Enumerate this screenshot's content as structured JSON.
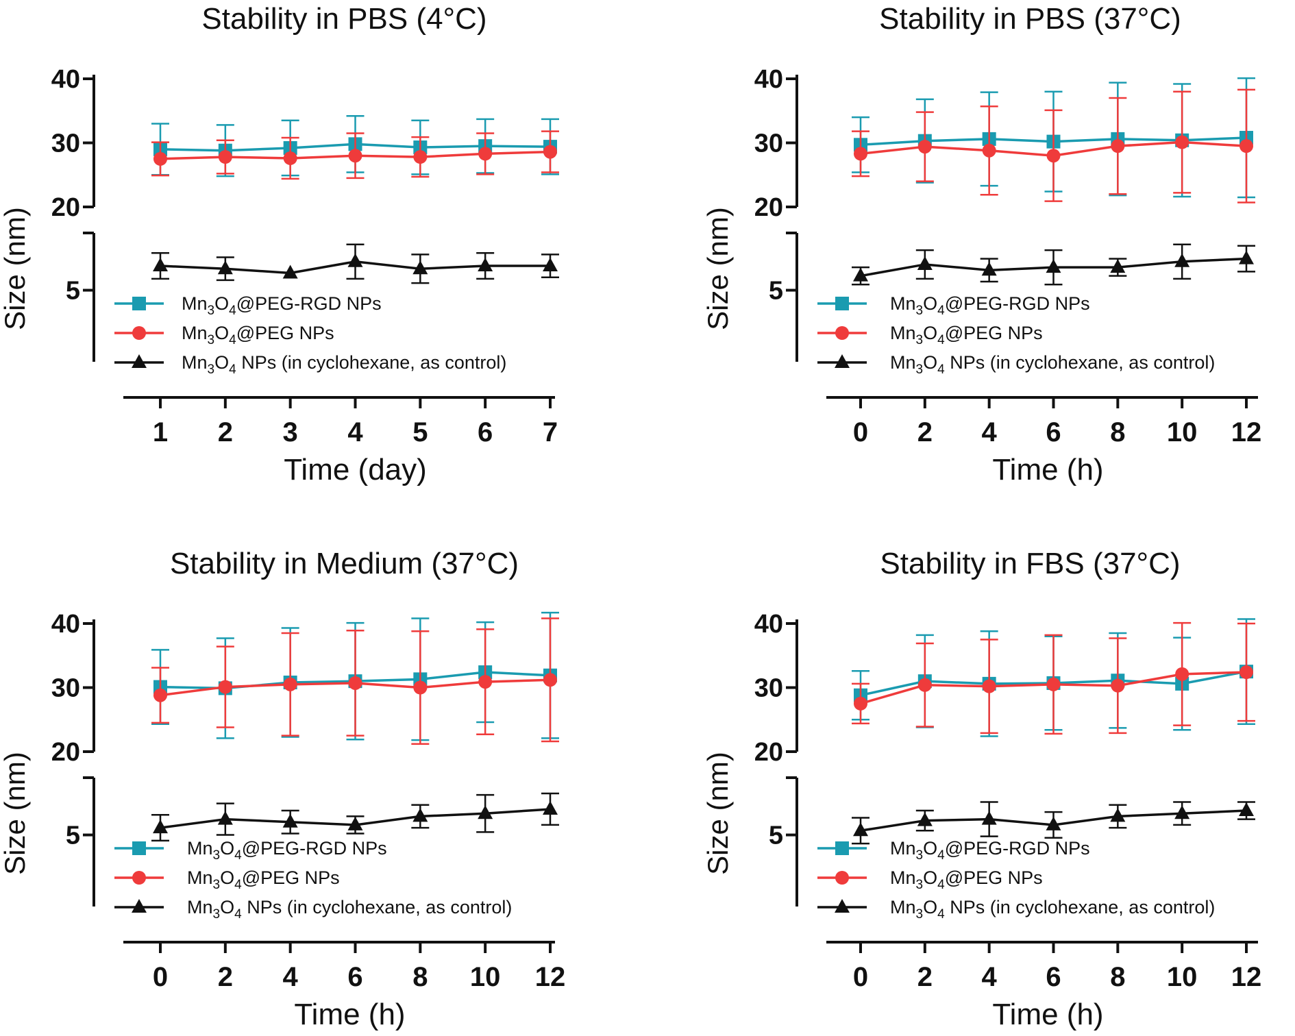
{
  "chart_data": [
    {
      "type": "line",
      "title": "Stability in PBS (4°C)",
      "xlabel": "Time (day)",
      "ylabel": "Size (nm)",
      "x": [
        1,
        2,
        3,
        4,
        5,
        6,
        7
      ],
      "xticks": [
        "1",
        "2",
        "3",
        "4",
        "5",
        "6",
        "7"
      ],
      "xlim": [
        0.5,
        7
      ],
      "ylim_upper": [
        20,
        40
      ],
      "ylim_lower": [
        0,
        9
      ],
      "yticks": [
        "40",
        "30",
        "20",
        "5"
      ],
      "series": [
        {
          "name": "Mn3O4@PEG-RGD NPs",
          "color": "#1a9bb0",
          "marker": "square",
          "values": [
            29.0,
            28.8,
            29.2,
            29.8,
            29.3,
            29.5,
            29.4
          ],
          "err": [
            4.0,
            4.0,
            4.3,
            4.4,
            4.2,
            4.2,
            4.3
          ]
        },
        {
          "name": "Mn3O4@PEG NPs",
          "color": "#ef3b3b",
          "marker": "circle",
          "values": [
            27.5,
            27.8,
            27.6,
            28.0,
            27.8,
            28.3,
            28.6
          ],
          "err": [
            2.6,
            2.6,
            3.2,
            3.5,
            3.1,
            3.2,
            3.2
          ]
        },
        {
          "name": "Mn3O4 NPs (in cyclohexane, as control)",
          "color": "#111111",
          "marker": "triangle",
          "values": [
            6.7,
            6.5,
            6.2,
            7.0,
            6.5,
            6.7,
            6.7
          ],
          "err": [
            0.9,
            0.8,
            0.0,
            1.2,
            1.0,
            0.9,
            0.8
          ]
        }
      ],
      "legend": {
        "rgd": [
          "Mn",
          "3",
          "O",
          "4",
          "@PEG-RGD NPs"
        ],
        "peg": [
          "Mn",
          "3",
          "O",
          "4",
          "@PEG NPs"
        ],
        "ctrl": [
          "Mn",
          "3",
          "O",
          "4",
          " NPs (in cyclohexane, as control)"
        ]
      }
    },
    {
      "type": "line",
      "title": "Stability in PBS (37°C)",
      "xlabel": "Time (h)",
      "ylabel": "Size (nm)",
      "x": [
        0,
        2,
        4,
        6,
        8,
        10,
        12
      ],
      "xticks": [
        "0",
        "2",
        "4",
        "6",
        "8",
        "10",
        "12"
      ],
      "xlim": [
        -1,
        12
      ],
      "ylim_upper": [
        20,
        40
      ],
      "ylim_lower": [
        0,
        9
      ],
      "yticks": [
        "40",
        "30",
        "20",
        "5"
      ],
      "series": [
        {
          "name": "Mn3O4@PEG-RGD NPs",
          "color": "#1a9bb0",
          "marker": "square",
          "values": [
            29.7,
            30.3,
            30.6,
            30.2,
            30.6,
            30.4,
            30.8
          ],
          "err": [
            4.3,
            6.5,
            7.3,
            7.8,
            8.8,
            8.8,
            9.3
          ]
        },
        {
          "name": "Mn3O4@PEG NPs",
          "color": "#ef3b3b",
          "marker": "circle",
          "values": [
            28.3,
            29.4,
            28.8,
            28.0,
            29.5,
            30.1,
            29.5
          ],
          "err": [
            3.5,
            5.4,
            6.9,
            7.1,
            7.5,
            7.9,
            8.8
          ]
        },
        {
          "name": "Mn3O4 NPs (in cyclohexane, as control)",
          "color": "#111111",
          "marker": "triangle",
          "values": [
            6.0,
            6.8,
            6.4,
            6.6,
            6.6,
            7.0,
            7.2
          ],
          "err": [
            0.6,
            1.0,
            0.8,
            1.2,
            0.6,
            1.2,
            0.9
          ]
        }
      ],
      "legend": {
        "rgd": [
          "Mn",
          "3",
          "O",
          "4",
          "@PEG-RGD NPs"
        ],
        "peg": [
          "Mn",
          "3",
          "O",
          "4",
          "@PEG NPs"
        ],
        "ctrl": [
          "Mn",
          "3",
          "O",
          "4",
          " NPs (in cyclohexane, as control)"
        ]
      }
    },
    {
      "type": "line",
      "title": "Stability in Medium (37°C)",
      "xlabel": "Time (h)",
      "ylabel": "Size (nm)",
      "x": [
        0,
        2,
        4,
        6,
        8,
        10,
        12
      ],
      "xticks": [
        "0",
        "2",
        "4",
        "6",
        "8",
        "10",
        "12"
      ],
      "xlim": [
        -1,
        12
      ],
      "ylim_upper": [
        20,
        40
      ],
      "ylim_lower": [
        0,
        9
      ],
      "yticks": [
        "40",
        "30",
        "20",
        "5"
      ],
      "series": [
        {
          "name": "Mn3O4@PEG-RGD NPs",
          "color": "#1a9bb0",
          "marker": "square",
          "values": [
            30.1,
            29.9,
            30.8,
            31.0,
            31.3,
            32.4,
            31.9
          ],
          "err": [
            5.8,
            7.8,
            8.5,
            9.1,
            9.5,
            7.8,
            9.8
          ]
        },
        {
          "name": "Mn3O4@PEG NPs",
          "color": "#ef3b3b",
          "marker": "circle",
          "values": [
            28.8,
            30.1,
            30.5,
            30.7,
            30.0,
            30.9,
            31.2
          ],
          "err": [
            4.3,
            6.3,
            8.0,
            8.2,
            8.8,
            8.2,
            9.6
          ]
        },
        {
          "name": "Mn3O4 NPs (in cyclohexane, as control)",
          "color": "#111111",
          "marker": "triangle",
          "values": [
            5.5,
            6.1,
            5.9,
            5.7,
            6.3,
            6.5,
            6.8
          ],
          "err": [
            0.9,
            1.1,
            0.8,
            0.6,
            0.8,
            1.3,
            1.1
          ]
        }
      ],
      "legend": {
        "rgd": [
          "Mn",
          "3",
          "O",
          "4",
          "@PEG-RGD NPs"
        ],
        "peg": [
          "Mn",
          "3",
          "O",
          "4",
          "@PEG NPs"
        ],
        "ctrl": [
          "Mn",
          "3",
          "O",
          "4",
          " NPs (in cyclohexane, as control)"
        ]
      }
    },
    {
      "type": "line",
      "title": "Stability in FBS (37°C)",
      "xlabel": "Time (h)",
      "ylabel": "Size (nm)",
      "x": [
        0,
        2,
        4,
        6,
        8,
        10,
        12
      ],
      "xticks": [
        "0",
        "2",
        "4",
        "6",
        "8",
        "10",
        "12"
      ],
      "xlim": [
        -1,
        12
      ],
      "ylim_upper": [
        20,
        40
      ],
      "ylim_lower": [
        0,
        9
      ],
      "yticks": [
        "40",
        "30",
        "20",
        "5"
      ],
      "series": [
        {
          "name": "Mn3O4@PEG-RGD NPs",
          "color": "#1a9bb0",
          "marker": "square",
          "values": [
            28.8,
            31.0,
            30.6,
            30.7,
            31.1,
            30.6,
            32.5
          ],
          "err": [
            3.8,
            7.2,
            8.2,
            7.3,
            7.4,
            7.2,
            8.2
          ]
        },
        {
          "name": "Mn3O4@PEG NPs",
          "color": "#ef3b3b",
          "marker": "circle",
          "values": [
            27.5,
            30.4,
            30.2,
            30.5,
            30.3,
            32.1,
            32.4
          ],
          "err": [
            3.1,
            6.5,
            7.3,
            7.7,
            7.4,
            8.0,
            7.6
          ]
        },
        {
          "name": "Mn3O4 NPs (in cyclohexane, as control)",
          "color": "#111111",
          "marker": "triangle",
          "values": [
            5.3,
            6.0,
            6.1,
            5.7,
            6.3,
            6.5,
            6.7
          ],
          "err": [
            0.9,
            0.7,
            1.2,
            0.9,
            0.8,
            0.8,
            0.6
          ]
        }
      ],
      "legend": {
        "rgd": [
          "Mn",
          "3",
          "O",
          "4",
          "@PEG-RGD NPs"
        ],
        "peg": [
          "Mn",
          "3",
          "O",
          "4",
          "@PEG NPs"
        ],
        "ctrl": [
          "Mn",
          "3",
          "O",
          "4",
          " NPs (in cyclohexane, as control)"
        ]
      }
    }
  ]
}
